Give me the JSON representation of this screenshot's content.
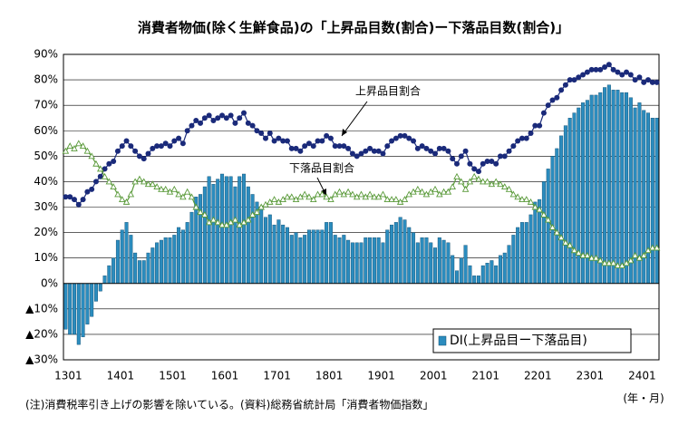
{
  "chart_data": {
    "type": "bar-line",
    "title": "消費者物価(除く生鮮食品)の「上昇品目数(割合)ー下落品目数(割合)」",
    "categories": [
      "1301",
      null,
      null,
      null,
      null,
      null,
      null,
      null,
      null,
      null,
      null,
      null,
      "1401",
      null,
      null,
      null,
      null,
      null,
      null,
      null,
      null,
      null,
      null,
      null,
      "1501",
      null,
      null,
      null,
      null,
      null,
      null,
      null,
      null,
      null,
      null,
      null,
      "1601",
      null,
      null,
      null,
      null,
      null,
      null,
      null,
      null,
      null,
      null,
      null,
      "1701",
      null,
      null,
      null,
      null,
      null,
      null,
      null,
      null,
      null,
      null,
      null,
      "1801",
      null,
      null,
      null,
      null,
      null,
      null,
      null,
      null,
      null,
      null,
      null,
      "1901",
      null,
      null,
      null,
      null,
      null,
      null,
      null,
      null,
      null,
      null,
      null,
      "2001",
      null,
      null,
      null,
      null,
      null,
      null,
      null,
      null,
      null,
      null,
      null,
      "2101",
      null,
      null,
      null,
      null,
      null,
      null,
      null,
      null,
      null,
      null,
      null,
      "2201",
      null,
      null,
      null,
      null,
      null,
      null,
      null,
      null,
      null,
      null,
      null,
      "2301",
      null,
      null,
      null,
      null,
      null,
      null,
      null,
      null,
      null,
      null,
      null,
      "2401",
      null,
      null,
      null,
      null
    ],
    "series": [
      {
        "name": "DI(上昇品目ー下落品目)",
        "color": "#2b8cbe",
        "kind": "bar",
        "values": [
          -18,
          -20,
          -20,
          -24,
          -21,
          -16,
          -13,
          -7,
          -3,
          3,
          7,
          10,
          17,
          21,
          24,
          19,
          12,
          9,
          9,
          12,
          14,
          16,
          17,
          18,
          18,
          19,
          22,
          21,
          24,
          28,
          34,
          35,
          38,
          42,
          39,
          41,
          43,
          42,
          42,
          38,
          42,
          43,
          38,
          35,
          32,
          29,
          26,
          27,
          23,
          25,
          23,
          22,
          19,
          20,
          18,
          19,
          21,
          21,
          21,
          21,
          24,
          24,
          19,
          18,
          19,
          17,
          16,
          16,
          16,
          18,
          18,
          18,
          18,
          16,
          21,
          23,
          24,
          26,
          25,
          22,
          20,
          16,
          18,
          18,
          16,
          14,
          18,
          17,
          16,
          11,
          5,
          10,
          15,
          7,
          3,
          3,
          7,
          8,
          9,
          7,
          11,
          12,
          15,
          19,
          22,
          24,
          24,
          27,
          32,
          33,
          40,
          45,
          50,
          53,
          58,
          62,
          65,
          67,
          69,
          71,
          72,
          74,
          74,
          75,
          77,
          78,
          76,
          76,
          75,
          75,
          73,
          69,
          71,
          68,
          67,
          65,
          65
        ]
      },
      {
        "name": "上昇品目割合",
        "color": "#1a2a7a",
        "kind": "line-circle",
        "values": [
          34,
          34,
          33,
          31,
          33,
          36,
          37,
          40,
          42,
          45,
          47,
          48,
          52,
          54,
          56,
          54,
          52,
          50,
          49,
          51,
          53,
          54,
          54,
          55,
          54,
          56,
          57,
          55,
          60,
          62,
          64,
          63,
          65,
          66,
          64,
          65,
          66,
          65,
          66,
          63,
          65,
          67,
          63,
          62,
          60,
          59,
          57,
          59,
          56,
          57,
          56,
          56,
          53,
          53,
          52,
          54,
          55,
          54,
          56,
          56,
          58,
          57,
          54,
          54,
          54,
          53,
          51,
          50,
          51,
          52,
          53,
          52,
          52,
          51,
          54,
          56,
          57,
          58,
          58,
          57,
          56,
          53,
          54,
          53,
          52,
          51,
          53,
          53,
          52,
          49,
          47,
          50,
          52,
          47,
          45,
          44,
          47,
          48,
          48,
          47,
          50,
          50,
          52,
          54,
          56,
          57,
          57,
          59,
          62,
          62,
          67,
          70,
          72,
          73,
          76,
          78,
          80,
          80,
          81,
          82,
          83,
          84,
          84,
          84,
          85,
          86,
          84,
          83,
          82,
          83,
          82,
          80,
          81,
          79,
          80,
          79,
          79
        ]
      },
      {
        "name": "下落品目割合",
        "color": "#5a9a3a",
        "kind": "line-triangle",
        "values": [
          52,
          54,
          53,
          55,
          54,
          52,
          50,
          47,
          45,
          42,
          40,
          38,
          35,
          33,
          32,
          35,
          40,
          41,
          40,
          39,
          39,
          38,
          37,
          37,
          36,
          37,
          35,
          34,
          36,
          34,
          30,
          28,
          27,
          24,
          25,
          24,
          23,
          23,
          24,
          25,
          23,
          24,
          25,
          27,
          28,
          30,
          31,
          32,
          33,
          32,
          33,
          34,
          34,
          33,
          34,
          35,
          34,
          33,
          35,
          35,
          34,
          33,
          35,
          36,
          35,
          36,
          35,
          34,
          35,
          34,
          35,
          34,
          34,
          35,
          33,
          33,
          33,
          32,
          33,
          35,
          36,
          37,
          36,
          35,
          36,
          37,
          35,
          36,
          36,
          38,
          42,
          40,
          37,
          40,
          42,
          41,
          40,
          40,
          39,
          40,
          39,
          38,
          37,
          35,
          34,
          33,
          33,
          32,
          30,
          29,
          27,
          25,
          22,
          20,
          18,
          16,
          15,
          13,
          12,
          11,
          11,
          10,
          10,
          9,
          8,
          8,
          8,
          7,
          7,
          8,
          9,
          11,
          10,
          11,
          13,
          14,
          14
        ]
      }
    ],
    "ylim": [
      -30,
      90
    ],
    "yticks": [
      {
        "value": -30,
        "label": "▲30%"
      },
      {
        "value": -20,
        "label": "▲20%"
      },
      {
        "value": -10,
        "label": "▲10%"
      },
      {
        "value": 0,
        "label": "0%"
      },
      {
        "value": 10,
        "label": "10%"
      },
      {
        "value": 20,
        "label": "20%"
      },
      {
        "value": 30,
        "label": "30%"
      },
      {
        "value": 40,
        "label": "40%"
      },
      {
        "value": 50,
        "label": "50%"
      },
      {
        "value": 60,
        "label": "60%"
      },
      {
        "value": 70,
        "label": "70%"
      },
      {
        "value": 80,
        "label": "80%"
      },
      {
        "value": 90,
        "label": "90%"
      }
    ],
    "grid": true,
    "annotations": [
      "上昇品目割合",
      "下落品目割合"
    ],
    "x_unit": "(年・月)",
    "note": "(注)消費税率引き上げの影響を除いている。(資料)総務省統計局「消費者物価指数」"
  }
}
